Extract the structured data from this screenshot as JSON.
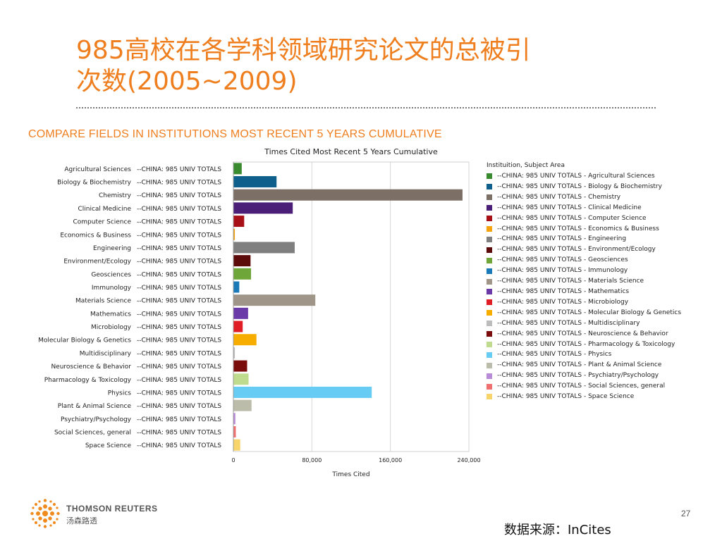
{
  "slide": {
    "title": "985高校在各学科领域研究论文的总被引\n次数(2005~2009)",
    "section_heading": "COMPARE FIELDS IN INSTITUTIONS MOST RECENT 5 YEARS CUMULATIVE",
    "page_number": "27",
    "source_note": "数据来源：InCites",
    "logo": {
      "name": "THOMSON REUTERS",
      "name_cn": "汤森路透"
    }
  },
  "legend": {
    "title": "Instituition, Subject Area",
    "items": [
      "--CHINA: 985 UNIV TOTALS - Agricultural Sciences",
      "--CHINA: 985 UNIV TOTALS - Biology & Biochemistry",
      "--CHINA: 985 UNIV TOTALS - Chemistry",
      "--CHINA: 985 UNIV TOTALS - Clinical Medicine",
      "--CHINA: 985 UNIV TOTALS - Computer Science",
      "--CHINA: 985 UNIV TOTALS - Economics & Business",
      "--CHINA: 985 UNIV TOTALS - Engineering",
      "--CHINA: 985 UNIV TOTALS - Environment/Ecology",
      "--CHINA: 985 UNIV TOTALS - Geosciences",
      "--CHINA: 985 UNIV TOTALS - Immunology",
      "--CHINA: 985 UNIV TOTALS - Materials Science",
      "--CHINA: 985 UNIV TOTALS - Mathematics",
      "--CHINA: 985 UNIV TOTALS - Microbiology",
      "--CHINA: 985 UNIV TOTALS - Molecular Biology & Genetics",
      "--CHINA: 985 UNIV TOTALS - Multidisciplinary",
      "--CHINA: 985 UNIV TOTALS - Neuroscience & Behavior",
      "--CHINA: 985 UNIV TOTALS - Pharmacology & Toxicology",
      "--CHINA: 985 UNIV TOTALS - Physics",
      "--CHINA: 985 UNIV TOTALS - Plant & Animal Science",
      "--CHINA: 985 UNIV TOTALS - Psychiatry/Psychology",
      "--CHINA: 985 UNIV TOTALS - Social Sciences, general",
      "--CHINA: 985 UNIV TOTALS - Space Science"
    ]
  },
  "chart_data": {
    "type": "bar",
    "orientation": "horizontal",
    "title": "Times Cited Most Recent 5 Years Cumulative",
    "xlabel": "Times Cited",
    "ylabel": "",
    "xlim": [
      0,
      240000
    ],
    "xticks": [
      0,
      80000,
      160000,
      240000
    ],
    "xtick_labels": [
      "0",
      "80,000",
      "160,000",
      "240,000"
    ],
    "grid": true,
    "legend_position": "right",
    "institution_label": "--CHINA: 985 UNIV TOTALS",
    "categories": [
      "Agricultural Sciences",
      "Biology & Biochemistry",
      "Chemistry",
      "Clinical Medicine",
      "Computer Science",
      "Economics & Business",
      "Engineering",
      "Environment/Ecology",
      "Geosciences",
      "Immunology",
      "Materials Science",
      "Mathematics",
      "Microbiology",
      "Molecular Biology & Genetics",
      "Multidisciplinary",
      "Neuroscience & Behavior",
      "Pharmacology & Toxicology",
      "Physics",
      "Plant & Animal Science",
      "Psychiatry/Psychology",
      "Social Sciences, general",
      "Space Science"
    ],
    "values": [
      8500,
      44000,
      233500,
      60500,
      11000,
      1500,
      62500,
      17500,
      18000,
      6000,
      83500,
      15000,
      9500,
      23500,
      1500,
      14000,
      15500,
      141000,
      18500,
      2000,
      2500,
      7000
    ],
    "colors": [
      "#3a8a2f",
      "#0f5f8c",
      "#7b6f66",
      "#4b1e78",
      "#a81018",
      "#f5a30f",
      "#7f7f7f",
      "#5c0a0a",
      "#6fa63a",
      "#1a7ab8",
      "#a09589",
      "#6a3aa8",
      "#e01c24",
      "#f7ad00",
      "#bcbcbc",
      "#7a0c0c",
      "#bfdc8e",
      "#66ccf4",
      "#bcbcab",
      "#b88ad8",
      "#f07070",
      "#f7d56a"
    ]
  }
}
